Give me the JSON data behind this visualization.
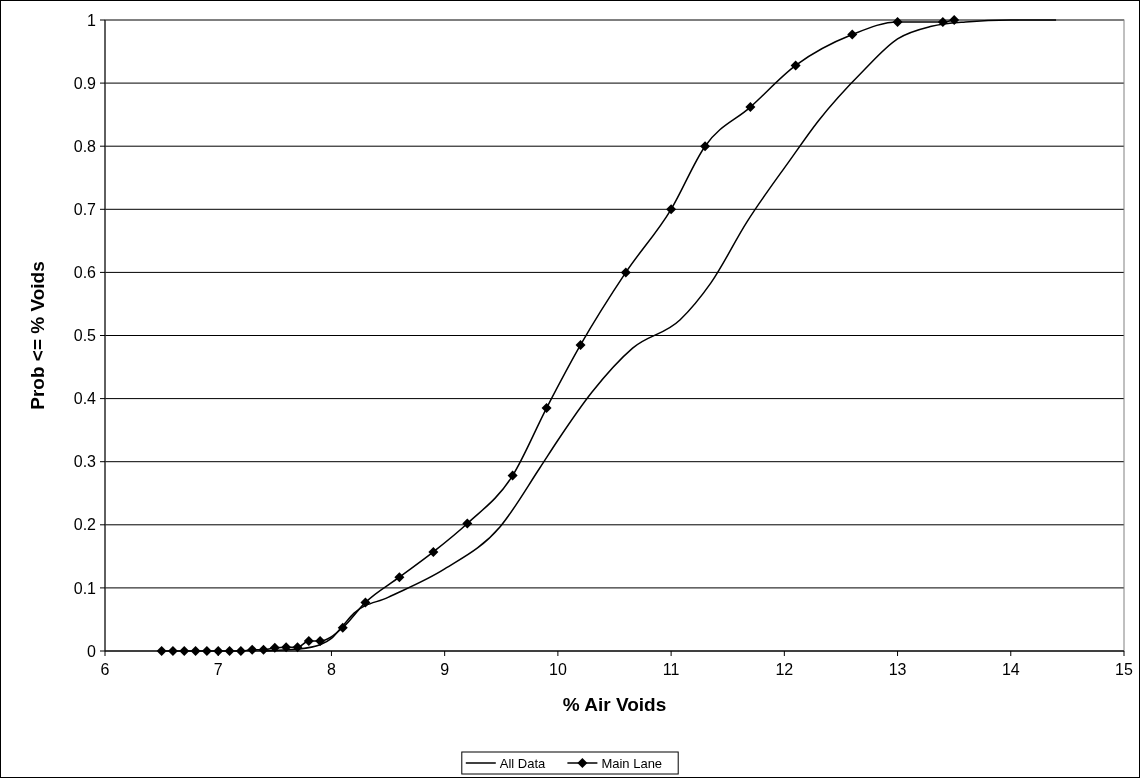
{
  "chart_data": {
    "type": "line",
    "xlabel": "% Air Voids",
    "ylabel": "Prob <= % Voids",
    "xlim": [
      6,
      15
    ],
    "xticks": [
      6,
      7,
      8,
      9,
      10,
      11,
      12,
      13,
      14,
      15
    ],
    "ylim": [
      0,
      1
    ],
    "yticks": [
      0,
      0.1,
      0.2,
      0.3,
      0.4,
      0.5,
      0.6,
      0.7,
      0.8,
      0.9,
      1
    ],
    "grid": "y",
    "legend": "bottom",
    "series": [
      {
        "name": "All Data",
        "color": "#000000",
        "marker": "none",
        "x": [
          7.4,
          7.7,
          7.9,
          8.0,
          8.1,
          8.2,
          8.5,
          9.0,
          9.49,
          9.84,
          10.0,
          10.3,
          10.66,
          11.08,
          11.35,
          11.67,
          12.05,
          12.3,
          12.7,
          13.0,
          13.3,
          13.6,
          14.0,
          14.4
        ],
        "values": [
          0,
          0.003,
          0.01,
          0.02,
          0.04,
          0.06,
          0.085,
          0.13,
          0.197,
          0.29,
          0.334,
          0.41,
          0.48,
          0.525,
          0.583,
          0.68,
          0.778,
          0.84,
          0.92,
          0.97,
          0.99,
          0.997,
          1.0,
          1.0
        ]
      },
      {
        "name": "Main Lane",
        "color": "#000000",
        "marker": "diamond",
        "x": [
          6.5,
          6.6,
          6.7,
          6.8,
          6.9,
          7.0,
          7.1,
          7.2,
          7.3,
          7.4,
          7.5,
          7.6,
          7.7,
          7.8,
          7.9,
          8.1,
          8.3,
          8.6,
          8.9,
          9.2,
          9.6,
          9.9,
          10.2,
          10.6,
          11.0,
          11.3,
          11.7,
          12.1,
          12.6,
          13.0,
          13.4,
          13.5
        ],
        "values": [
          0,
          0,
          0,
          0,
          0,
          0,
          0,
          0,
          0.002,
          0.002,
          0.005,
          0.006,
          0.006,
          0.016,
          0.016,
          0.037,
          0.077,
          0.117,
          0.157,
          0.202,
          0.278,
          0.385,
          0.485,
          0.6,
          0.7,
          0.8,
          0.862,
          0.928,
          0.977,
          0.997,
          0.997,
          1.0
        ]
      }
    ]
  }
}
